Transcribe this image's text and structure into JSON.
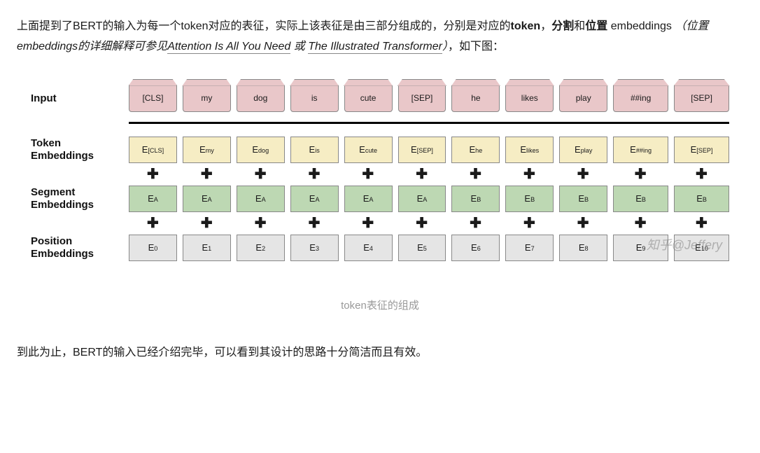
{
  "para1": {
    "pre": "上面提到了BERT的输入为每一个token对应的表征，实际上该表征是由三部分组成的，分别是对应的",
    "bold1": "token",
    "comma1": "，",
    "bold2": "分割",
    "mid1": "和",
    "bold3": "位置",
    "mid2": " embeddings ",
    "italic_pre": "（位置embeddings的详细解释可参见",
    "link1": "Attention Is All You Need",
    "italic_mid": " 或 ",
    "link2": "The Illustrated Transformer",
    "italic_post": "）",
    "post": "，如下图："
  },
  "diagram": {
    "row_labels": {
      "input": "Input",
      "token": "Token\nEmbeddings",
      "segment": "Segment\nEmbeddings",
      "position": "Position\nEmbeddings"
    },
    "columns": 11,
    "input_tokens": [
      "[CLS]",
      "my",
      "dog",
      "is",
      "cute",
      "[SEP]",
      "he",
      "likes",
      "play",
      "##ing",
      "[SEP]"
    ],
    "token_subs": [
      "[CLS]",
      "my",
      "dog",
      "is",
      "cute",
      "[SEP]",
      "he",
      "likes",
      "play",
      "##ing",
      "[SEP]"
    ],
    "segment_subs": [
      "A",
      "A",
      "A",
      "A",
      "A",
      "A",
      "B",
      "B",
      "B",
      "B",
      "B"
    ],
    "position_subs": [
      "0",
      "1",
      "2",
      "3",
      "4",
      "5",
      "6",
      "7",
      "8",
      "9",
      "10"
    ],
    "wide_indices": [
      9,
      10
    ],
    "colors": {
      "input_bg": "#e9c7c9",
      "token_bg": "#f6edc4",
      "segment_bg": "#bdd8b3",
      "position_bg": "#e5e5e5",
      "cell_border": "#888888",
      "divider": "#000000",
      "text": "#1a1a1a",
      "caption": "#999999"
    },
    "plus": "✚",
    "E": "E"
  },
  "caption": "token表征的组成",
  "para2": "到此为止，BERT的输入已经介绍完毕，可以看到其设计的思路十分简洁而且有效。",
  "watermark": "知乎@Jeffery"
}
